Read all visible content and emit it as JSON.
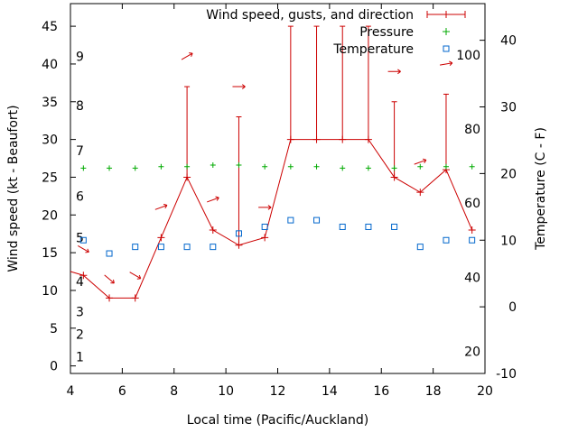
{
  "chart_data": {
    "type": "line",
    "xlabel": "Local time (Pacific/Auckland)",
    "ylabel": "Wind speed (kt - Beaufort)",
    "y2label": "Temperature (C - F)",
    "xlim": [
      4,
      20
    ],
    "ylim": [
      -1,
      48
    ],
    "y2lim": [
      -10,
      45.5
    ],
    "x_ticks": [
      4,
      6,
      8,
      10,
      12,
      14,
      16,
      18,
      20
    ],
    "y_ticks": [
      0,
      5,
      10,
      15,
      20,
      25,
      30,
      35,
      40,
      45
    ],
    "y2_ticks": [
      -10,
      0,
      10,
      20,
      30,
      40
    ],
    "beaufort_labels": [
      {
        "label": "1",
        "y": 1.2
      },
      {
        "label": "2",
        "y": 4.2
      },
      {
        "label": "3",
        "y": 7.2
      },
      {
        "label": "4",
        "y": 11.2
      },
      {
        "label": "5",
        "y": 17.0
      },
      {
        "label": "6",
        "y": 22.5
      },
      {
        "label": "7",
        "y": 28.5
      },
      {
        "label": "8",
        "y": 34.5
      },
      {
        "label": "9",
        "y": 41.0
      }
    ],
    "fahrenheit_labels": [
      {
        "label": "20",
        "c": -6.7
      },
      {
        "label": "40",
        "c": 4.4
      },
      {
        "label": "60",
        "c": 15.6
      },
      {
        "label": "80",
        "c": 26.7
      },
      {
        "label": "100",
        "c": 37.8
      }
    ],
    "colors": {
      "wind": "#cc0000",
      "pressure": "#00aa00",
      "temperature": "#0066cc",
      "axis": "#000000"
    },
    "legend": {
      "position": "top-right",
      "entries": [
        "Wind speed, gusts, and direction",
        "Pressure",
        "Temperature"
      ]
    },
    "series": [
      {
        "name": "Wind speed, gusts, and direction",
        "x": [
          4.5,
          5.5,
          6.5,
          7.5,
          8.5,
          9.5,
          10.5,
          11.5,
          12.5,
          13.5,
          14.5,
          15.5,
          16.5,
          17.5,
          18.5,
          19.5
        ],
        "speed": [
          12,
          9,
          9,
          17,
          25,
          18,
          16,
          17,
          30,
          30,
          30,
          30,
          25,
          23,
          26,
          18
        ],
        "gust": [
          null,
          null,
          null,
          null,
          37,
          null,
          33,
          null,
          45,
          45,
          45,
          45,
          35,
          null,
          36,
          null
        ],
        "direction_deg": [
          300,
          310,
          300,
          250,
          240,
          250,
          270,
          270,
          null,
          null,
          null,
          null,
          270,
          250,
          260,
          null
        ]
      },
      {
        "name": "Pressure",
        "x": [
          4.5,
          5.5,
          6.5,
          7.5,
          8.5,
          9.5,
          10.5,
          11.5,
          12.5,
          13.5,
          14.5,
          15.5,
          16.5,
          17.5,
          18.5,
          19.5
        ],
        "values": [
          26.2,
          26.2,
          26.2,
          26.4,
          26.4,
          26.6,
          26.6,
          26.4,
          26.4,
          26.4,
          26.2,
          26.2,
          26.2,
          26.4,
          26.4,
          26.4
        ]
      },
      {
        "name": "Temperature",
        "x": [
          4.5,
          5.5,
          6.5,
          7.5,
          8.5,
          9.5,
          10.5,
          11.5,
          12.5,
          13.5,
          14.5,
          15.5,
          16.5,
          17.5,
          18.5,
          19.5
        ],
        "values": [
          10,
          8,
          9,
          9,
          9,
          9,
          11,
          12,
          13,
          13,
          12,
          12,
          12,
          9,
          10,
          10
        ]
      }
    ]
  }
}
